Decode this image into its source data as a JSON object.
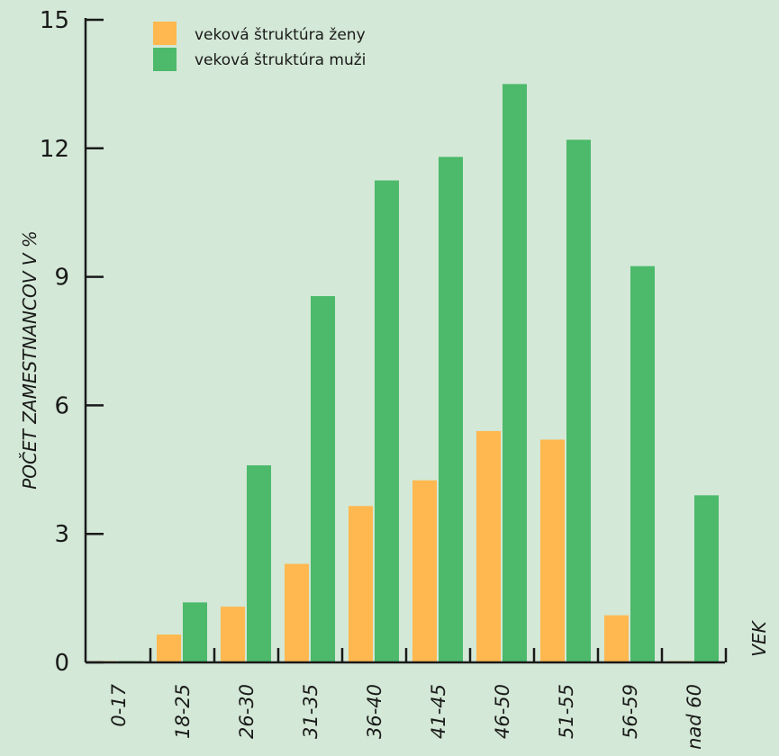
{
  "chart_data": {
    "type": "bar",
    "categories": [
      "0-17",
      "18-25",
      "26-30",
      "31-35",
      "36-40",
      "41-45",
      "46-50",
      "51-55",
      "56-59",
      "nad 60"
    ],
    "series": [
      {
        "name": "veková štruktúra ženy",
        "color": "#ffb84f",
        "values": [
          0,
          0.65,
          1.3,
          2.3,
          3.65,
          4.25,
          5.4,
          5.2,
          1.1,
          0
        ]
      },
      {
        "name": "veková štruktúra muži",
        "color": "#4cb96b",
        "values": [
          0,
          1.4,
          4.6,
          8.55,
          11.25,
          11.8,
          13.5,
          12.2,
          9.25,
          3.9
        ]
      }
    ],
    "ylabel": "POČET ZAMESTNANCOV V %",
    "xlabel": "VEK",
    "ylim": [
      0,
      15
    ],
    "yticks": [
      0,
      3,
      6,
      9,
      12,
      15
    ],
    "grid": false,
    "legend_position": "top-left"
  }
}
